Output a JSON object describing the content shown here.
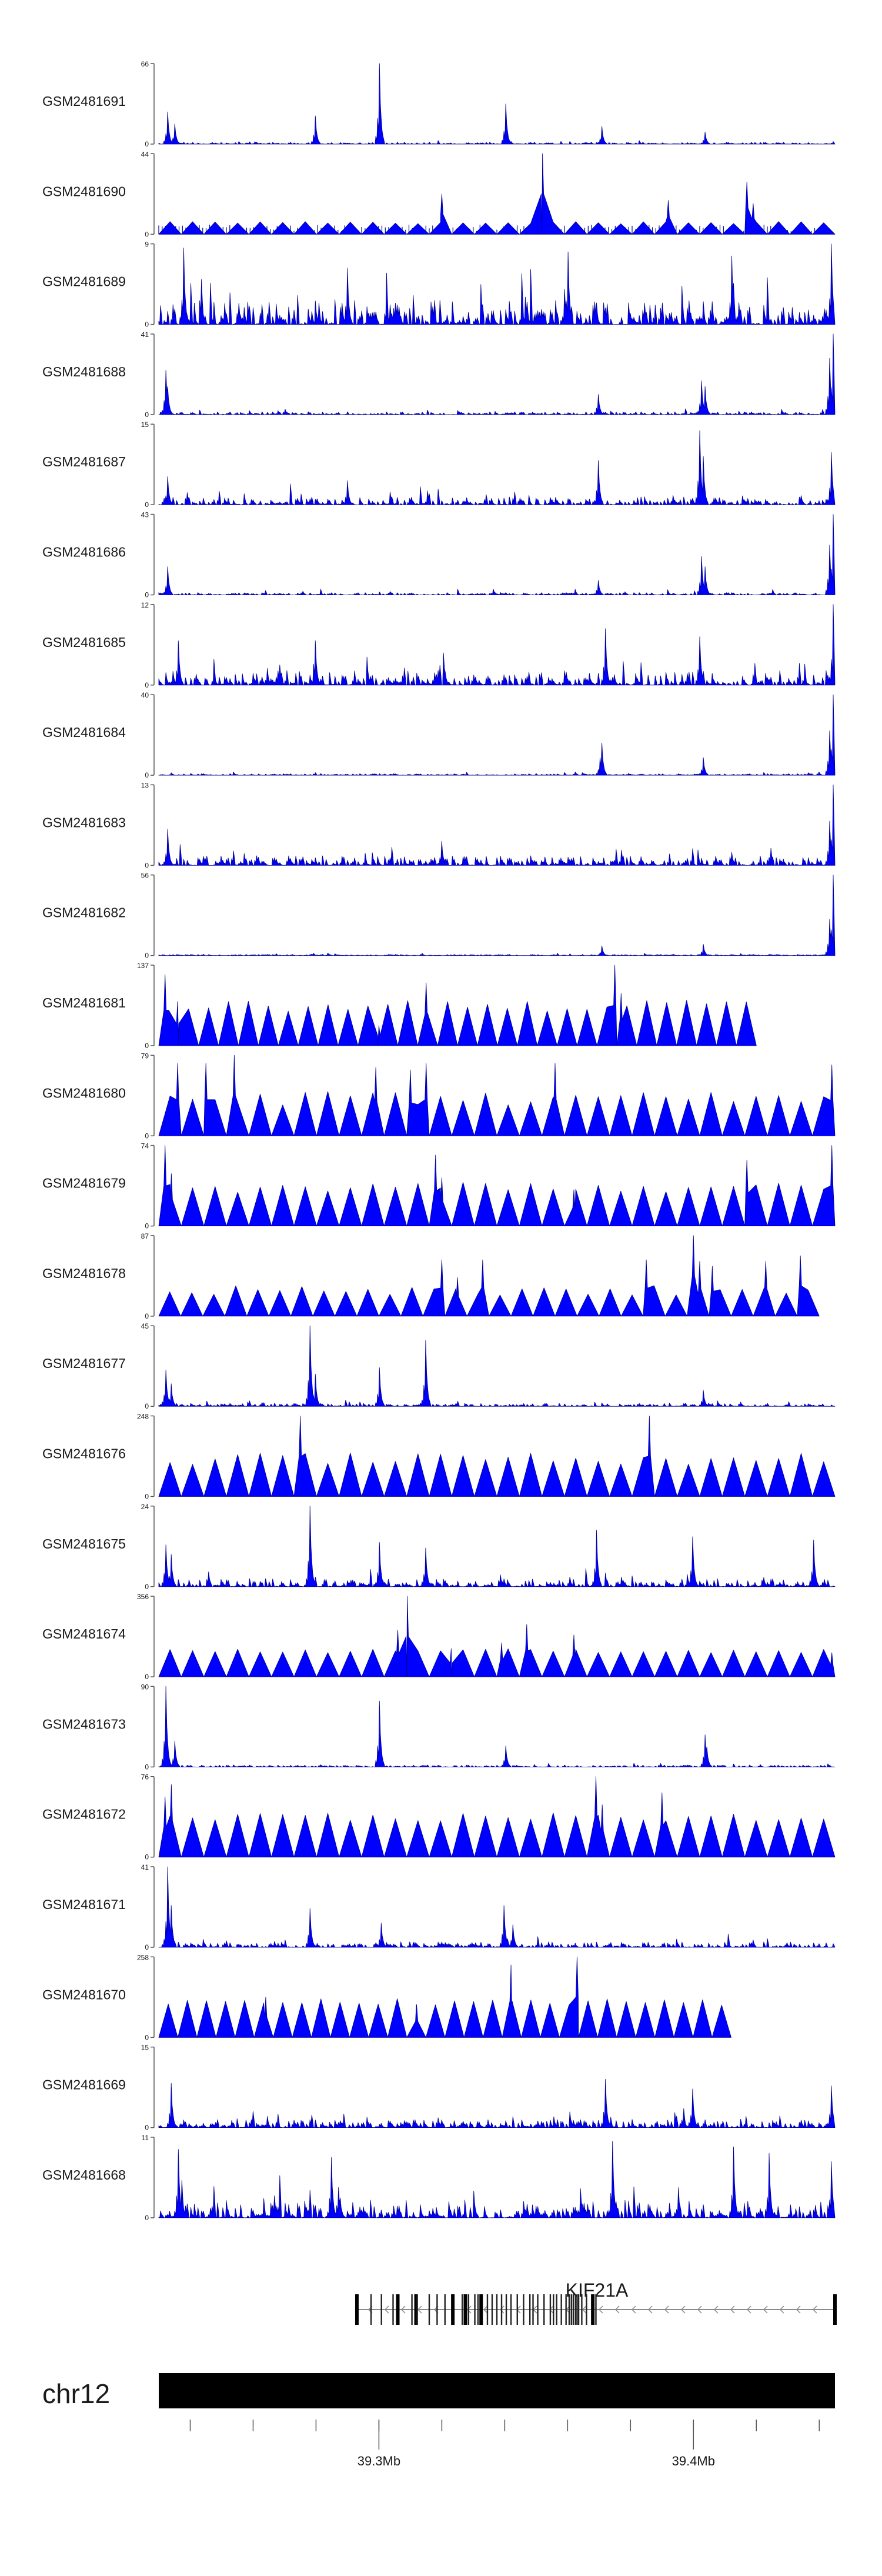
{
  "colors": {
    "signal": "#0000ff",
    "signal_edge": "#00008b",
    "axis": "#555555",
    "text": "#1a1a1a",
    "ideogram": "#000000",
    "gene": "#222222",
    "intron": "#8a8a8a"
  },
  "chart_data": {
    "type": "area",
    "title": "",
    "chromosome": "chr12",
    "xlim_mb": [
      39.23,
      39.445
    ],
    "x_ticks": [
      {
        "pos_mb": 39.3,
        "label": "39.3Mb"
      },
      {
        "pos_mb": 39.4,
        "label": "39.4Mb"
      }
    ],
    "minor_ticks_mb": [
      39.24,
      39.26,
      39.28,
      39.3,
      39.32,
      39.34,
      39.36,
      39.38,
      39.4,
      39.42,
      39.44
    ],
    "gene": {
      "name": "KIF21A",
      "strand": "-",
      "start_mb": 39.293,
      "end_mb": 39.445,
      "exons_mb": [
        39.293,
        39.2975,
        39.3008,
        39.3045,
        39.306,
        39.3105,
        39.3118,
        39.3122,
        39.316,
        39.3185,
        39.321,
        39.3235,
        39.3265,
        39.3275,
        39.3285,
        39.3305,
        39.3315,
        39.3325,
        39.3345,
        39.336,
        39.3375,
        39.339,
        39.3405,
        39.342,
        39.344,
        39.346,
        39.348,
        39.349,
        39.3505,
        39.3525,
        39.3545,
        39.3555,
        39.3565,
        39.358,
        39.3595,
        39.3605,
        39.3612,
        39.3618,
        39.3625,
        39.363,
        39.3635,
        39.3645,
        39.366,
        39.368,
        39.369,
        39.445
      ],
      "thick_exons_mb": [
        39.293,
        39.306,
        39.3118,
        39.3235,
        39.3275,
        39.3325,
        39.368,
        39.445
      ]
    },
    "series": [
      {
        "name": "GSM2481691",
        "ymax": 66,
        "style": "dense",
        "seed": 691,
        "base": 0.025,
        "peaks": [
          [
            39.233,
            0.4
          ],
          [
            39.235,
            0.25
          ],
          [
            39.28,
            0.35
          ],
          [
            39.3,
            1.0
          ],
          [
            39.3405,
            0.5
          ],
          [
            39.371,
            0.22
          ],
          [
            39.4035,
            0.15
          ],
          [
            39.445,
            0.1
          ]
        ]
      },
      {
        "name": "GSM2481690",
        "ymax": 44,
        "style": "sparse",
        "seed": 690,
        "base": 0.12,
        "tri": [
          0.13,
          0.16
        ],
        "peaks": [
          [
            39.32,
            0.5
          ],
          [
            39.352,
            1.0
          ],
          [
            39.392,
            0.42
          ],
          [
            39.417,
            0.65
          ],
          [
            39.419,
            0.38
          ]
        ]
      },
      {
        "name": "GSM2481689",
        "ymax": 9,
        "style": "dense",
        "seed": 689,
        "base": 0.3,
        "peaks": [
          [
            39.238,
            0.95
          ],
          [
            39.29,
            0.7
          ],
          [
            39.36,
            0.9
          ],
          [
            39.412,
            0.85
          ],
          [
            39.444,
            1.0
          ]
        ]
      },
      {
        "name": "GSM2481688",
        "ymax": 41,
        "style": "dense",
        "seed": 688,
        "base": 0.035,
        "peaks": [
          [
            39.232,
            0.55
          ],
          [
            39.233,
            0.35
          ],
          [
            39.37,
            0.25
          ],
          [
            39.4025,
            0.42
          ],
          [
            39.4035,
            0.35
          ],
          [
            39.4445,
            1.0
          ],
          [
            39.4435,
            0.7
          ]
        ]
      },
      {
        "name": "GSM2481687",
        "ymax": 15,
        "style": "dense",
        "seed": 687,
        "base": 0.1,
        "peaks": [
          [
            39.233,
            0.35
          ],
          [
            39.29,
            0.3
          ],
          [
            39.37,
            0.55
          ],
          [
            39.402,
            0.92
          ],
          [
            39.403,
            0.6
          ],
          [
            39.444,
            0.65
          ]
        ]
      },
      {
        "name": "GSM2481686",
        "ymax": 43,
        "style": "dense",
        "seed": 686,
        "base": 0.03,
        "peaks": [
          [
            39.233,
            0.35
          ],
          [
            39.37,
            0.18
          ],
          [
            39.4025,
            0.48
          ],
          [
            39.4035,
            0.35
          ],
          [
            39.4445,
            1.0
          ],
          [
            39.4435,
            0.62
          ]
        ]
      },
      {
        "name": "GSM2481685",
        "ymax": 12,
        "style": "dense",
        "seed": 685,
        "base": 0.18,
        "peaks": [
          [
            39.236,
            0.55
          ],
          [
            39.28,
            0.55
          ],
          [
            39.372,
            0.7
          ],
          [
            39.402,
            0.6
          ],
          [
            39.4445,
            1.0
          ]
        ]
      },
      {
        "name": "GSM2481684",
        "ymax": 40,
        "style": "dense",
        "seed": 684,
        "base": 0.02,
        "peaks": [
          [
            39.371,
            0.4
          ],
          [
            39.3705,
            0.22
          ],
          [
            39.403,
            0.22
          ],
          [
            39.4445,
            1.0
          ],
          [
            39.4435,
            0.55
          ]
        ]
      },
      {
        "name": "GSM2481683",
        "ymax": 13,
        "style": "dense",
        "seed": 683,
        "base": 0.12,
        "peaks": [
          [
            39.233,
            0.45
          ],
          [
            39.32,
            0.3
          ],
          [
            39.4445,
            1.0
          ],
          [
            39.4435,
            0.55
          ]
        ]
      },
      {
        "name": "GSM2481682",
        "ymax": 56,
        "style": "dense",
        "seed": 682,
        "base": 0.015,
        "peaks": [
          [
            39.371,
            0.12
          ],
          [
            39.403,
            0.14
          ],
          [
            39.4445,
            1.0
          ],
          [
            39.4435,
            0.45
          ]
        ]
      },
      {
        "name": "GSM2481681",
        "ymax": 137,
        "style": "sparse",
        "seed": 681,
        "base": 0.0,
        "tri": [
          0.4,
          0.58
        ],
        "xmax_mb": 39.42,
        "peaks": [
          [
            39.232,
            0.88
          ],
          [
            39.3,
            0.25
          ],
          [
            39.315,
            0.78
          ],
          [
            39.375,
            1.0
          ],
          [
            39.377,
            0.65
          ],
          [
            39.236,
            0.55
          ]
        ]
      },
      {
        "name": "GSM2481680",
        "ymax": 79,
        "style": "sparse",
        "seed": 680,
        "base": 0.0,
        "tri": [
          0.38,
          0.55
        ],
        "peaks": [
          [
            39.236,
            0.9
          ],
          [
            39.245,
            0.9
          ],
          [
            39.254,
            1.0
          ],
          [
            39.299,
            0.85
          ],
          [
            39.31,
            0.82
          ],
          [
            39.315,
            0.9
          ],
          [
            39.356,
            0.9
          ],
          [
            39.444,
            0.88
          ]
        ]
      },
      {
        "name": "GSM2481679",
        "ymax": 74,
        "style": "sparse",
        "seed": 679,
        "base": 0.0,
        "tri": [
          0.4,
          0.55
        ],
        "peaks": [
          [
            39.232,
            1.0
          ],
          [
            39.234,
            0.65
          ],
          [
            39.318,
            0.88
          ],
          [
            39.32,
            0.6
          ],
          [
            39.417,
            0.82
          ],
          [
            39.444,
            1.0
          ],
          [
            39.362,
            0.45
          ]
        ]
      },
      {
        "name": "GSM2481678",
        "ymax": 87,
        "style": "sparse",
        "seed": 678,
        "base": 0.0,
        "tri": [
          0.26,
          0.38
        ],
        "xmax_mb": 39.44,
        "peaks": [
          [
            39.32,
            0.7
          ],
          [
            39.325,
            0.48
          ],
          [
            39.333,
            0.7
          ],
          [
            39.385,
            0.7
          ],
          [
            39.4,
            1.0
          ],
          [
            39.402,
            0.68
          ],
          [
            39.406,
            0.62
          ],
          [
            39.423,
            0.68
          ],
          [
            39.434,
            0.75
          ]
        ]
      },
      {
        "name": "GSM2481677",
        "ymax": 45,
        "style": "dense",
        "seed": 677,
        "base": 0.04,
        "peaks": [
          [
            39.232,
            0.45
          ],
          [
            39.234,
            0.28
          ],
          [
            39.278,
            1.0
          ],
          [
            39.28,
            0.4
          ],
          [
            39.3,
            0.48
          ],
          [
            39.315,
            0.82
          ],
          [
            39.403,
            0.2
          ]
        ]
      },
      {
        "name": "GSM2481676",
        "ymax": 248,
        "style": "sparse",
        "seed": 676,
        "base": 0.0,
        "tri": [
          0.4,
          0.55
        ],
        "peaks": [
          [
            39.275,
            1.0
          ],
          [
            39.386,
            1.0
          ]
        ]
      },
      {
        "name": "GSM2481675",
        "ymax": 24,
        "style": "dense",
        "seed": 675,
        "base": 0.1,
        "peaks": [
          [
            39.232,
            0.52
          ],
          [
            39.234,
            0.4
          ],
          [
            39.278,
            1.0
          ],
          [
            39.3,
            0.55
          ],
          [
            39.315,
            0.48
          ],
          [
            39.369,
            0.7
          ],
          [
            39.4,
            0.62
          ],
          [
            39.438,
            0.58
          ]
        ]
      },
      {
        "name": "GSM2481674",
        "ymax": 356,
        "style": "sparse",
        "seed": 674,
        "base": 0.0,
        "tri": [
          0.3,
          0.35
        ],
        "peaks": [
          [
            39.309,
            1.0
          ],
          [
            39.306,
            0.58
          ],
          [
            39.323,
            0.35
          ],
          [
            39.339,
            0.42
          ],
          [
            39.347,
            0.65
          ],
          [
            39.362,
            0.52
          ],
          [
            39.444,
            0.3
          ]
        ]
      },
      {
        "name": "GSM2481673",
        "ymax": 90,
        "style": "dense",
        "seed": 673,
        "base": 0.025,
        "peaks": [
          [
            39.232,
            1.0
          ],
          [
            39.235,
            0.32
          ],
          [
            39.3,
            0.82
          ],
          [
            39.3405,
            0.26
          ],
          [
            39.4035,
            0.4
          ],
          [
            39.4045,
            0.25
          ]
        ]
      },
      {
        "name": "GSM2481672",
        "ymax": 76,
        "style": "sparse",
        "seed": 672,
        "base": 0.0,
        "tri": [
          0.45,
          0.55
        ],
        "peaks": [
          [
            39.232,
            0.75
          ],
          [
            39.234,
            0.9
          ],
          [
            39.369,
            1.0
          ],
          [
            39.371,
            0.65
          ],
          [
            39.39,
            0.8
          ]
        ]
      },
      {
        "name": "GSM2481671",
        "ymax": 41,
        "style": "dense",
        "seed": 671,
        "base": 0.07,
        "peaks": [
          [
            39.233,
            1.0
          ],
          [
            39.234,
            0.52
          ],
          [
            39.278,
            0.48
          ],
          [
            39.34,
            0.52
          ],
          [
            39.3005,
            0.3
          ],
          [
            39.3425,
            0.28
          ]
        ]
      },
      {
        "name": "GSM2481670",
        "ymax": 258,
        "style": "sparse",
        "seed": 670,
        "base": 0.0,
        "tri": [
          0.4,
          0.48
        ],
        "xmax_mb": 39.412,
        "peaks": [
          [
            39.363,
            1.0
          ],
          [
            39.342,
            0.9
          ],
          [
            39.264,
            0.5
          ],
          [
            39.312,
            0.4
          ]
        ]
      },
      {
        "name": "GSM2481669",
        "ymax": 15,
        "style": "dense",
        "seed": 669,
        "base": 0.1,
        "peaks": [
          [
            39.234,
            0.55
          ],
          [
            39.372,
            0.6
          ],
          [
            39.4,
            0.48
          ],
          [
            39.444,
            0.52
          ]
        ]
      },
      {
        "name": "GSM2481668",
        "ymax": 11,
        "style": "dense",
        "seed": 668,
        "base": 0.22,
        "peaks": [
          [
            39.236,
            0.85
          ],
          [
            39.285,
            0.75
          ],
          [
            39.3745,
            0.95
          ],
          [
            39.413,
            0.88
          ],
          [
            39.424,
            0.8
          ],
          [
            39.444,
            0.7
          ]
        ]
      }
    ]
  }
}
